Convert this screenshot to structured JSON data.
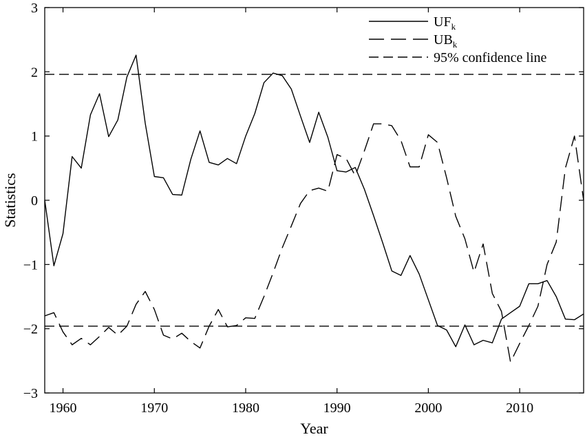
{
  "chart_data": {
    "type": "line",
    "xlabel": "Year",
    "ylabel": "Statistics",
    "xlim": [
      1958,
      2017
    ],
    "ylim": [
      -3,
      3
    ],
    "xticks": [
      1960,
      1970,
      1980,
      1990,
      2000,
      2010
    ],
    "yticks": [
      -3,
      -2,
      -1,
      0,
      1,
      2,
      3
    ],
    "ytick_labels": [
      "−3",
      "−2",
      "−1",
      "0",
      "1",
      "2",
      "3"
    ],
    "grid": false,
    "legend_position": "top-right",
    "x": [
      1958,
      1959,
      1960,
      1961,
      1962,
      1963,
      1964,
      1965,
      1966,
      1967,
      1968,
      1969,
      1970,
      1971,
      1972,
      1973,
      1974,
      1975,
      1976,
      1977,
      1978,
      1979,
      1980,
      1981,
      1982,
      1983,
      1984,
      1985,
      1986,
      1987,
      1988,
      1989,
      1990,
      1991,
      1992,
      1993,
      1994,
      1995,
      1996,
      1997,
      1998,
      1999,
      2000,
      2001,
      2002,
      2003,
      2004,
      2005,
      2006,
      2007,
      2008,
      2009,
      2010,
      2011,
      2012,
      2013,
      2014,
      2015,
      2016,
      2017
    ],
    "series": [
      {
        "name_main": "UF",
        "name_sub": "k",
        "style": "solid",
        "values": [
          0.0,
          -1.02,
          -0.52,
          0.68,
          0.5,
          1.33,
          1.66,
          0.99,
          1.25,
          1.92,
          2.26,
          1.2,
          0.37,
          0.35,
          0.09,
          0.08,
          0.64,
          1.08,
          0.59,
          0.55,
          0.65,
          0.57,
          1.0,
          1.35,
          1.83,
          1.98,
          1.94,
          1.73,
          1.31,
          0.9,
          1.37,
          0.98,
          0.46,
          0.44,
          0.51,
          0.17,
          -0.24,
          -0.66,
          -1.1,
          -1.17,
          -0.86,
          -1.15,
          -1.55,
          -1.95,
          -2.02,
          -2.28,
          -1.94,
          -2.25,
          -2.18,
          -2.22,
          -1.85,
          -1.75,
          -1.65,
          -1.3,
          -1.3,
          -1.25,
          -1.5,
          -1.85,
          -1.86,
          -1.77
        ]
      },
      {
        "name_main": "UB",
        "name_sub": "k",
        "style": "dashed",
        "values": [
          -1.8,
          -1.75,
          -2.05,
          -2.25,
          -2.15,
          -2.25,
          -2.12,
          -1.98,
          -2.1,
          -1.96,
          -1.62,
          -1.42,
          -1.7,
          -2.1,
          -2.16,
          -2.07,
          -2.2,
          -2.3,
          -1.96,
          -1.7,
          -1.97,
          -1.95,
          -1.83,
          -1.84,
          -1.5,
          -1.13,
          -0.74,
          -0.4,
          -0.05,
          0.15,
          0.19,
          0.14,
          0.71,
          0.65,
          0.38,
          0.77,
          1.19,
          1.19,
          1.16,
          0.93,
          0.52,
          0.52,
          1.02,
          0.9,
          0.35,
          -0.25,
          -0.6,
          -1.12,
          -0.68,
          -1.45,
          -1.73,
          -2.52,
          -2.23,
          -1.95,
          -1.65,
          -1.0,
          -0.65,
          0.5,
          1.0,
          0.0
        ]
      }
    ],
    "confidence_line": {
      "label": "95% confidence line",
      "values": [
        1.96,
        -1.96
      ]
    }
  }
}
